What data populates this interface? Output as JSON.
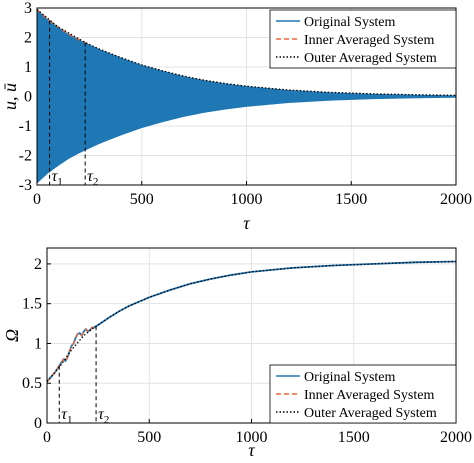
{
  "chart_data": [
    {
      "type": "line",
      "xlabel": "τ",
      "ylabel": "u, ū",
      "xlim": [
        0,
        2000
      ],
      "ylim": [
        -3,
        3
      ],
      "xticks": [
        "0",
        "500",
        "1000",
        "1500",
        "2000"
      ],
      "yticks": [
        "-3",
        "-2",
        "-1",
        "0",
        "1",
        "2",
        "3"
      ],
      "grid": true,
      "legend_position": "top-right",
      "series": [
        {
          "name": "Original System",
          "style": "oscillation",
          "color": "#1f77b4",
          "envelope_x": [
            0,
            50,
            100,
            150,
            200,
            230,
            300,
            400,
            500,
            600,
            700,
            800,
            900,
            1000,
            1200,
            1400,
            1600,
            1800,
            2000
          ],
          "envelope_y": [
            2.95,
            2.62,
            2.36,
            2.12,
            1.93,
            1.83,
            1.6,
            1.32,
            1.07,
            0.87,
            0.69,
            0.55,
            0.44,
            0.35,
            0.22,
            0.14,
            0.09,
            0.06,
            0.04
          ]
        },
        {
          "name": "Inner Averaged System",
          "style": "dashed",
          "color": "#e8683a",
          "x": [
            0,
            50,
            100,
            150,
            200,
            230
          ],
          "y": [
            2.95,
            2.62,
            2.36,
            2.12,
            1.93,
            1.83
          ]
        },
        {
          "name": "Outer Averaged System",
          "style": "dotted",
          "color": "#000000",
          "x": [
            0,
            100,
            230,
            300,
            400,
            500,
            600,
            700,
            800,
            900,
            1000,
            1200,
            1400,
            1600,
            1800,
            2000
          ],
          "y": [
            2.95,
            2.36,
            1.83,
            1.6,
            1.32,
            1.07,
            0.87,
            0.69,
            0.55,
            0.44,
            0.35,
            0.22,
            0.14,
            0.09,
            0.06,
            0.04
          ]
        }
      ],
      "annotations": [
        {
          "label": "τ",
          "sub": "1",
          "x": 60
        },
        {
          "label": "τ",
          "sub": "2",
          "x": 230
        }
      ]
    },
    {
      "type": "line",
      "xlabel": "τ",
      "ylabel": "Ω",
      "xlim": [
        0,
        2000
      ],
      "ylim": [
        0,
        2.2
      ],
      "xticks": [
        "0",
        "500",
        "1000",
        "1500",
        "2000"
      ],
      "yticks": [
        "0",
        "0.5",
        "1",
        "1.5",
        "2"
      ],
      "grid": true,
      "legend_position": "bottom-right",
      "series": [
        {
          "name": "Original System",
          "style": "solid",
          "color": "#1f77b4",
          "x": [
            0,
            20,
            40,
            60,
            70,
            80,
            90,
            100,
            110,
            120,
            130,
            140,
            150,
            160,
            170,
            180,
            190,
            200,
            210,
            220,
            230,
            260,
            300,
            350,
            400,
            500,
            600,
            700,
            800,
            900,
            1000,
            1200,
            1400,
            1600,
            1800,
            2000
          ],
          "y": [
            0.52,
            0.58,
            0.64,
            0.72,
            0.76,
            0.8,
            0.78,
            0.82,
            0.9,
            0.97,
            1.0,
            1.07,
            1.12,
            1.13,
            1.1,
            1.15,
            1.18,
            1.15,
            1.17,
            1.2,
            1.2,
            1.25,
            1.32,
            1.4,
            1.47,
            1.58,
            1.67,
            1.75,
            1.81,
            1.86,
            1.9,
            1.95,
            1.98,
            2.0,
            2.02,
            2.03
          ]
        },
        {
          "name": "Inner Averaged System",
          "style": "dashed",
          "color": "#e8683a",
          "x": [
            0,
            20,
            40,
            60,
            70,
            80,
            90,
            100,
            110,
            120,
            130,
            140,
            150,
            160,
            170,
            180,
            190,
            200,
            210,
            220,
            230
          ],
          "y": [
            0.52,
            0.58,
            0.64,
            0.72,
            0.76,
            0.8,
            0.78,
            0.82,
            0.9,
            0.97,
            1.0,
            1.07,
            1.12,
            1.13,
            1.1,
            1.15,
            1.18,
            1.15,
            1.17,
            1.2,
            1.2
          ]
        },
        {
          "name": "Outer Averaged System",
          "style": "dotted",
          "color": "#000000",
          "x": [
            0,
            60,
            120,
            180,
            230,
            260,
            300,
            350,
            400,
            500,
            600,
            700,
            800,
            900,
            1000,
            1200,
            1400,
            1600,
            1800,
            2000
          ],
          "y": [
            0.52,
            0.7,
            0.92,
            1.1,
            1.2,
            1.25,
            1.32,
            1.4,
            1.47,
            1.58,
            1.67,
            1.75,
            1.81,
            1.86,
            1.9,
            1.95,
            1.98,
            2.0,
            2.02,
            2.03
          ]
        }
      ],
      "annotations": [
        {
          "label": "τ",
          "sub": "1",
          "x": 60
        },
        {
          "label": "τ",
          "sub": "2",
          "x": 240
        }
      ]
    }
  ]
}
